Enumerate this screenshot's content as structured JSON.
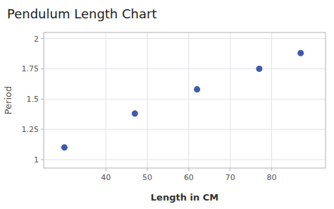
{
  "chart_data": {
    "type": "scatter",
    "title": "Pendulum Length Chart",
    "xlabel": "Length in CM",
    "ylabel": "Period",
    "x": [
      30,
      47,
      62,
      77,
      87
    ],
    "values": [
      1.1,
      1.38,
      1.58,
      1.75,
      1.88
    ],
    "color": "#3d5aad",
    "xlim": [
      25,
      93
    ],
    "ylim": [
      0.93,
      2.05
    ],
    "xticks": [
      40,
      50,
      60,
      70,
      80
    ],
    "yticks": [
      1,
      1.25,
      1.5,
      1.75,
      2
    ],
    "grid": true
  }
}
